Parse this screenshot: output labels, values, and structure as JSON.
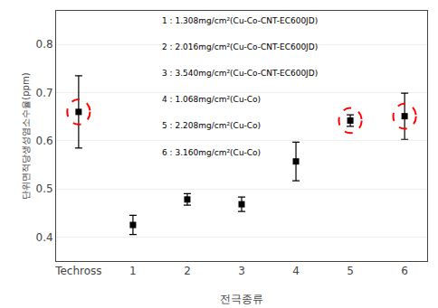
{
  "chart_data": {
    "type": "scatter",
    "categories": [
      "Techross",
      "1",
      "2",
      "3",
      "4",
      "5",
      "6"
    ],
    "values": [
      0.66,
      0.425,
      0.478,
      0.468,
      0.557,
      0.642,
      0.651
    ],
    "errors": [
      0.075,
      0.02,
      0.012,
      0.015,
      0.04,
      0.012,
      0.048
    ],
    "color": "black",
    "marker": "square",
    "highlight": {
      "categories": [
        "Techross",
        "5",
        "6"
      ],
      "color": "red",
      "line_style": "dashed"
    },
    "annotations": [
      "1 : 1.308mg/cm²(Cu-Co-CNT-EC600JD)",
      "2 : 2.016mg/cm²(Cu-Co-CNT-EC600JD)",
      "3 : 3.540mg/cm²(Cu-Co-CNT-EC600JD)",
      "4 : 1.068mg/cm²(Cu-Co)",
      "5 : 2.208mg/cm²(Cu-Co)",
      "6 : 3.160mg/cm²(Cu-Co)"
    ],
    "xlabel": "전극종류",
    "ylabel": "단위면적당생성염소수율(ppm)",
    "ylim": [
      0.35,
      0.87
    ],
    "yticks": [
      0.4,
      0.5,
      0.6,
      0.7,
      0.8
    ],
    "grid": "y"
  }
}
